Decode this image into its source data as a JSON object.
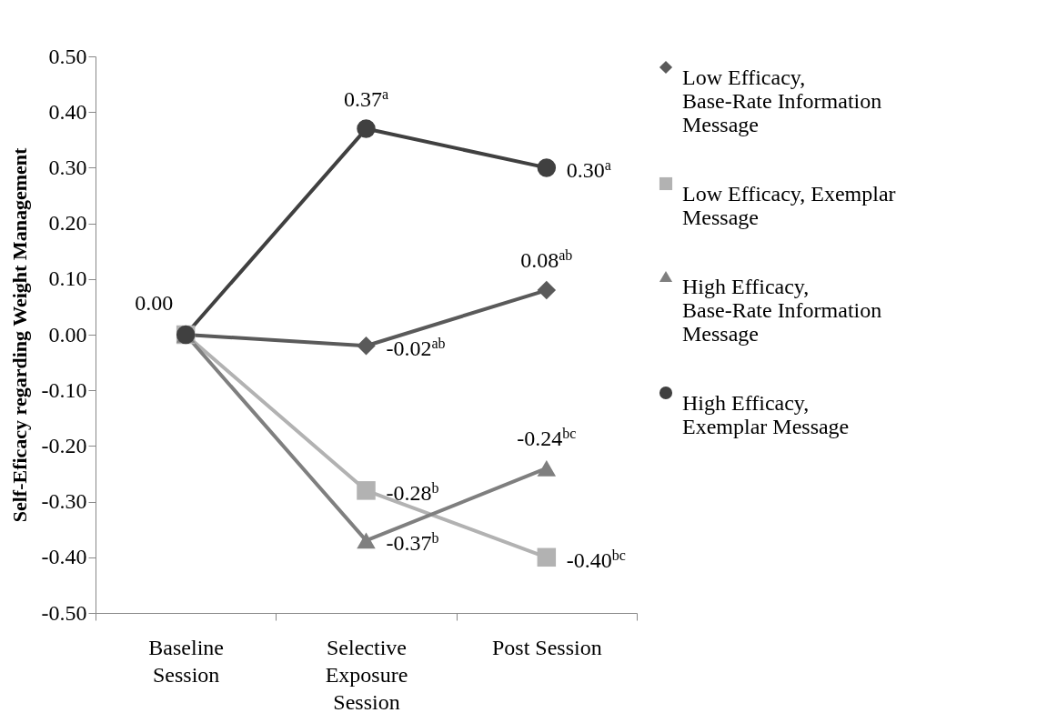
{
  "chart_data": {
    "type": "line",
    "ylabel": "Self-Eficacy regarding Weight Management",
    "categories": [
      "Baseline Session",
      "Selective Exposure Session",
      "Post Session"
    ],
    "series": [
      {
        "name": "Low Efficacy, Base-Rate Information Message",
        "color": "#5a5a5a",
        "marker": "diamond",
        "values": [
          0,
          -0.02,
          0.08
        ],
        "value_labels": [
          null,
          "-0.02$^{ab}$",
          "0.08$^{ab}$"
        ]
      },
      {
        "name": "Low Efficacy, Exemplar Message",
        "color": "#b2b2b2",
        "marker": "square",
        "values": [
          0,
          -0.28,
          -0.4
        ],
        "value_labels": [
          null,
          "-0.28$^{b}$",
          "-0.40$^{bc}$"
        ]
      },
      {
        "name": "High Efficacy, Base-Rate Information Message",
        "color": "#7f7f7f",
        "marker": "triangle",
        "values": [
          0,
          -0.37,
          -0.24
        ],
        "value_labels": [
          null,
          "-0.37$^{b}$",
          "-0.24$^{bc}$"
        ]
      },
      {
        "name": "High Efficacy, Exemplar Message",
        "color": "#404040",
        "marker": "circle",
        "values": [
          0,
          0.37,
          0.3
        ],
        "value_labels": [
          "0.00",
          "0.37$^{a}$",
          "0.30$^{a}$"
        ]
      }
    ],
    "ylim": [
      -0.5,
      0.5
    ],
    "yticks": [
      {
        "value": -0.5,
        "label": "-0.50"
      },
      {
        "value": -0.4,
        "label": "-0.40"
      },
      {
        "value": -0.3,
        "label": "-0.30"
      },
      {
        "value": -0.2,
        "label": "-0.20"
      },
      {
        "value": -0.1,
        "label": "-0.10"
      },
      {
        "value": 0,
        "label": "0.00"
      },
      {
        "value": 0.1,
        "label": "0.10"
      },
      {
        "value": 0.2,
        "label": "0.20"
      },
      {
        "value": 0.3,
        "label": "0.30"
      },
      {
        "value": 0.4,
        "label": "0.40"
      },
      {
        "value": 0.5,
        "label": "0.50"
      }
    ],
    "grid": false,
    "legend": "right",
    "line_style": "solid"
  }
}
